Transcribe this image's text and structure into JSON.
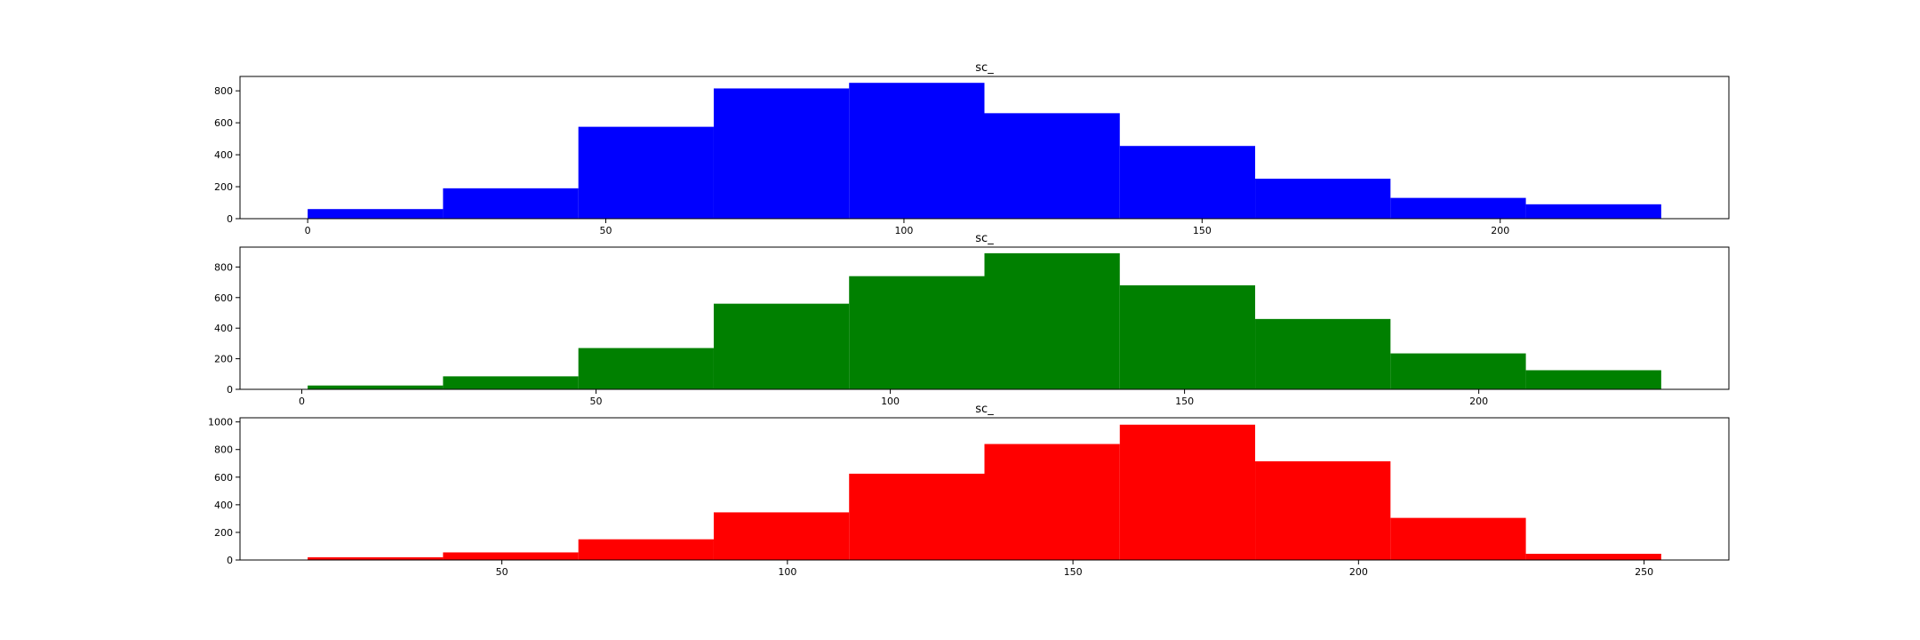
{
  "chart_data": [
    {
      "type": "bar",
      "title": "sc_",
      "color": "#0000ff",
      "bin_edges": [
        0,
        22.7,
        45.4,
        68.1,
        90.8,
        113.5,
        136.2,
        158.9,
        181.6,
        204.3,
        227
      ],
      "values": [
        60,
        190,
        575,
        815,
        850,
        660,
        455,
        250,
        130,
        90
      ],
      "xlim": [
        -11.35,
        238.35
      ],
      "ylim": [
        0,
        890
      ],
      "xticks": [
        0,
        50,
        100,
        150,
        200
      ],
      "yticks": [
        0,
        200,
        400,
        600,
        800
      ]
    },
    {
      "type": "bar",
      "title": "sc_",
      "color": "#008000",
      "bin_edges": [
        1,
        24,
        47,
        70,
        93,
        116,
        139,
        162,
        185,
        208,
        231
      ],
      "values": [
        25,
        85,
        270,
        560,
        740,
        890,
        680,
        460,
        235,
        125
      ],
      "xlim": [
        -10.5,
        242.5
      ],
      "ylim": [
        0,
        930
      ],
      "xticks": [
        0,
        50,
        100,
        150,
        200
      ],
      "yticks": [
        0,
        200,
        400,
        600,
        800
      ]
    },
    {
      "type": "bar",
      "title": "sc_",
      "color": "#ff0000",
      "bin_edges": [
        16,
        39.7,
        63.4,
        87.1,
        110.8,
        134.5,
        158.2,
        181.9,
        205.6,
        229.3,
        253
      ],
      "values": [
        20,
        55,
        150,
        345,
        625,
        840,
        980,
        715,
        305,
        45
      ],
      "xlim": [
        4.15,
        264.85
      ],
      "ylim": [
        0,
        1030
      ],
      "xticks": [
        50,
        100,
        150,
        200,
        250
      ],
      "yticks": [
        0,
        200,
        400,
        600,
        800,
        1000
      ]
    }
  ]
}
